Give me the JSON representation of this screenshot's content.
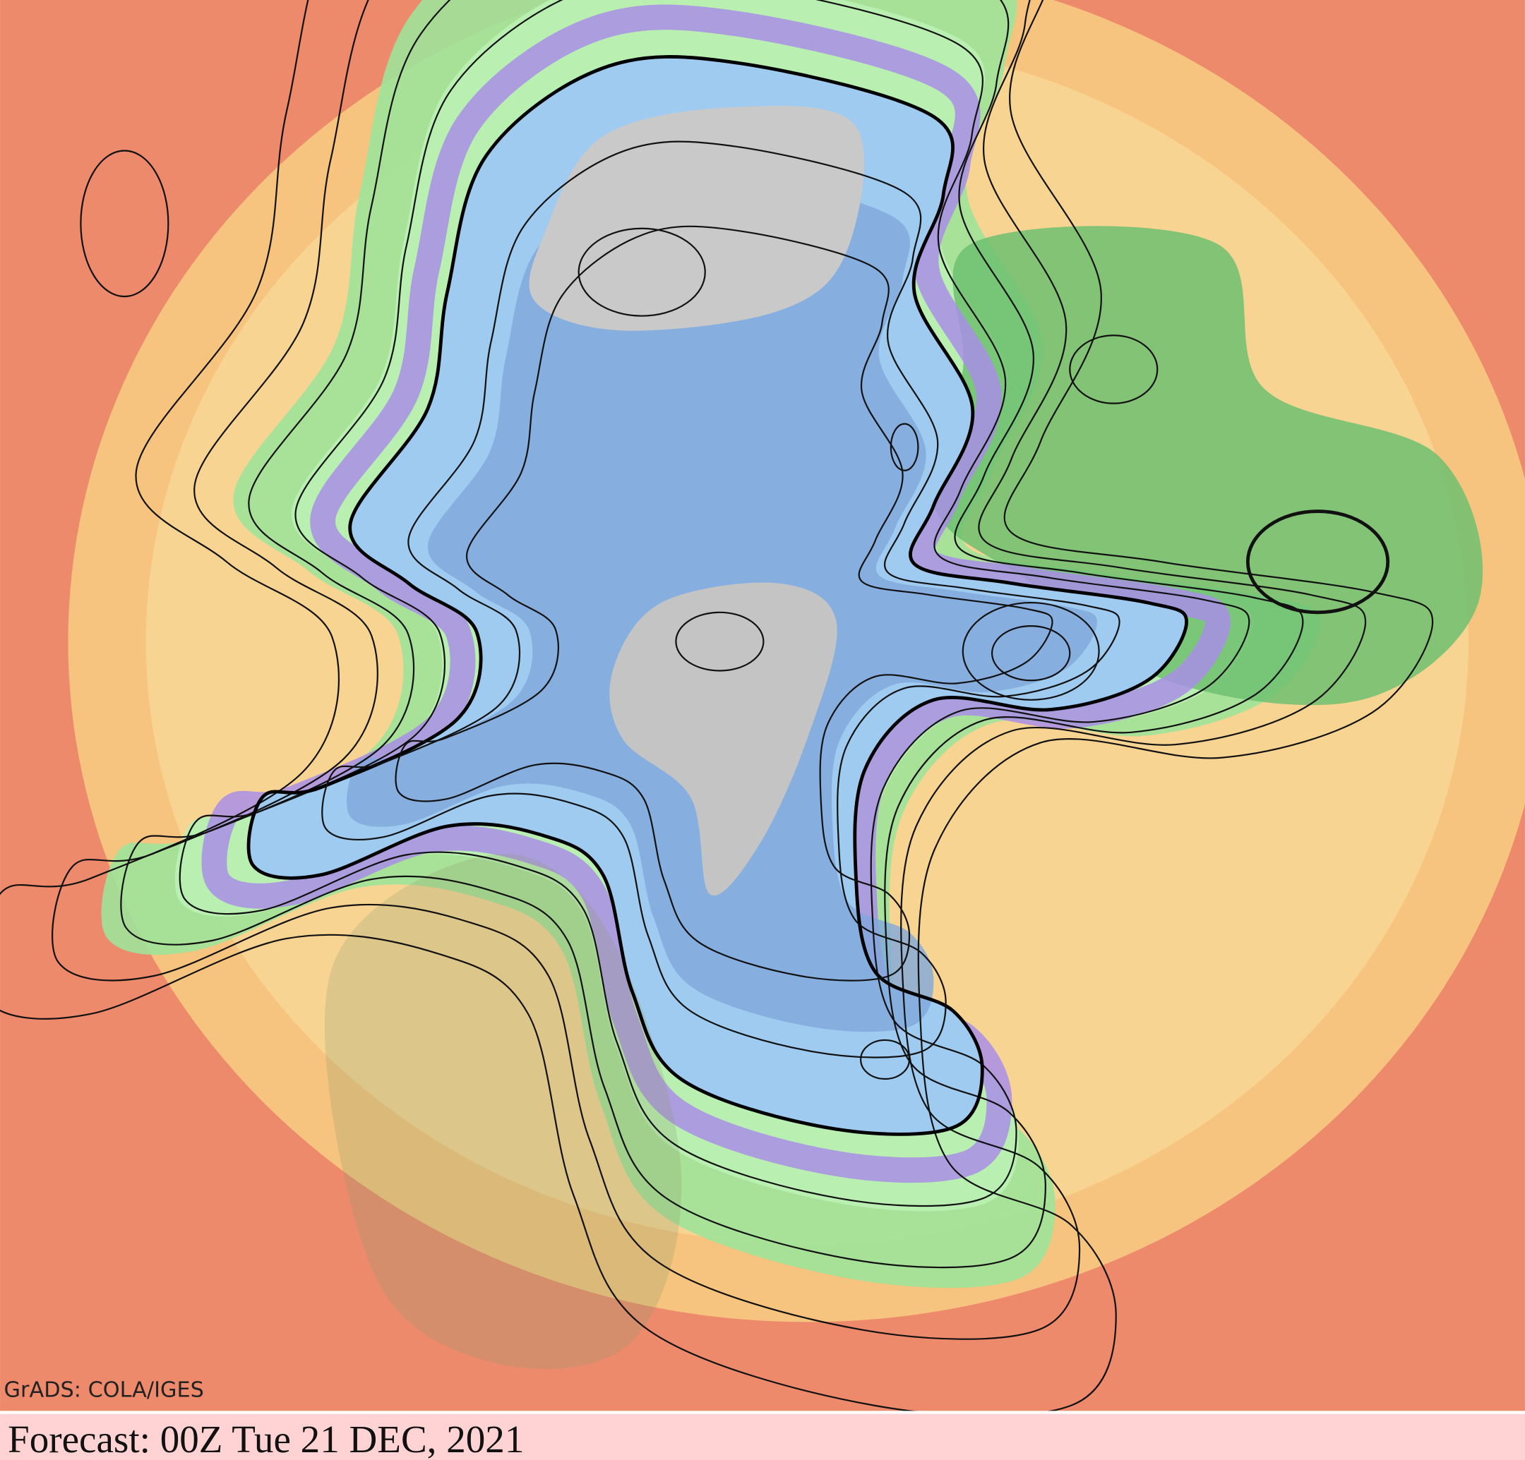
{
  "watermark": "GrADS: COLA/IGES",
  "footer": "Forecast: 00Z Tue 21 DEC, 2021"
}
